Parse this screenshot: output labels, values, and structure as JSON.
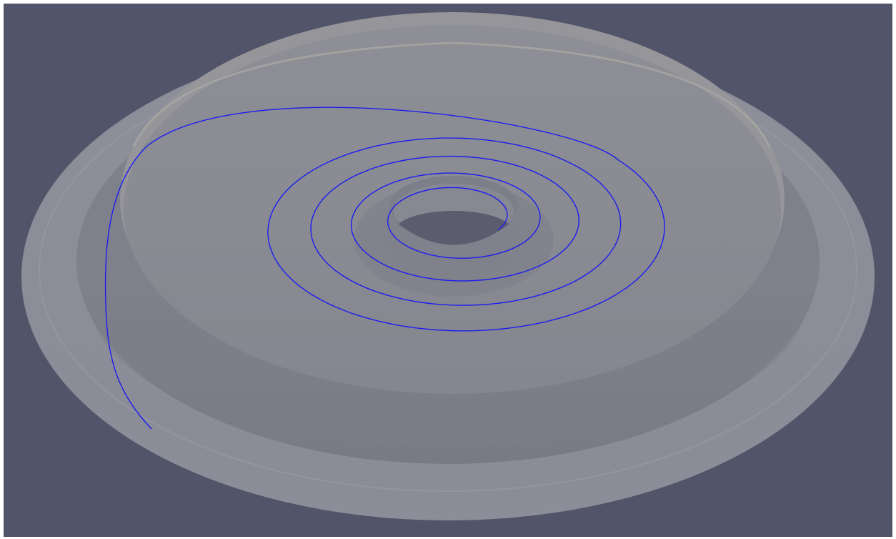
{
  "scene": {
    "background_color": "#525469",
    "frame_color": "#ffffff",
    "surface_colors": {
      "outer_rim": "#8a8c98",
      "outer_rim_edge": "#9a9ca6",
      "basin": "#7b7d88",
      "basin_front_shade": "#767884",
      "upper_disc": "#8a8b94",
      "upper_disc_edge": "#a3a39f",
      "hole_inner": "#5a5c6d",
      "hole_rim": "#777986"
    },
    "streamline_color": "#1c1cf0",
    "objects": [
      {
        "name": "outer-flange",
        "kind": "translucent surface"
      },
      {
        "name": "upper-disc",
        "kind": "translucent surface"
      },
      {
        "name": "center-hole",
        "kind": "opening"
      },
      {
        "name": "streamline-spiral",
        "kind": "polyline"
      }
    ]
  }
}
